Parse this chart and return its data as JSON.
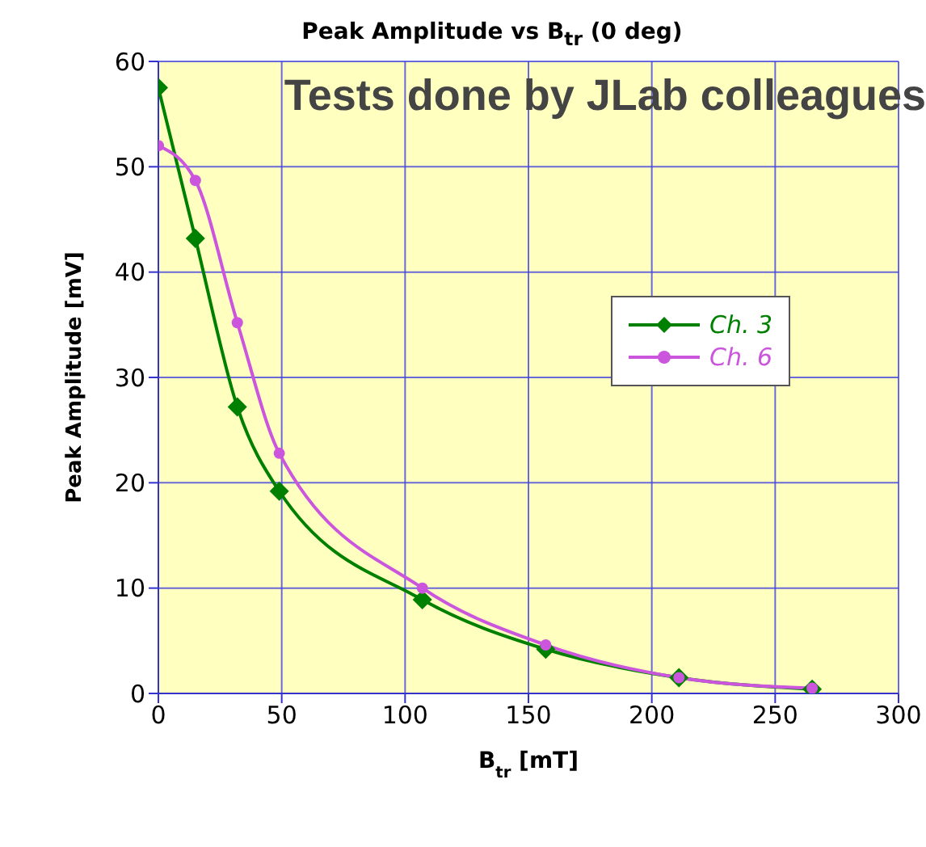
{
  "chart_data": {
    "type": "line",
    "title": "Peak Amplitude vs B$_{tr}$ (0 deg)",
    "xlabel": "B$_{tr}$ [mT]",
    "ylabel": "Peak Amplitude [mV]",
    "annotations": [
      "Tests done by JLab colleagues"
    ],
    "series": [
      {
        "name": "Ch. 3",
        "color": "#008000",
        "marker": "diamond",
        "x": [
          0,
          15,
          32,
          49,
          107,
          157,
          211,
          265
        ],
        "values": [
          57.5,
          43.2,
          27.2,
          19.2,
          8.9,
          4.2,
          1.5,
          0.4
        ]
      },
      {
        "name": "Ch. 6",
        "color": "#cc55dd",
        "marker": "circle",
        "x": [
          0,
          15,
          32,
          49,
          107,
          157,
          211,
          265
        ],
        "values": [
          52,
          48.7,
          35.2,
          22.8,
          10,
          4.6,
          1.5,
          0.5
        ]
      }
    ],
    "xlim": [
      0,
      300
    ],
    "xticks": [
      0,
      50,
      100,
      150,
      200,
      250,
      300
    ],
    "ylim": [
      0,
      60
    ],
    "yticks": [
      0,
      10,
      20,
      30,
      40,
      50,
      60
    ],
    "grid": true,
    "legend": "right"
  }
}
